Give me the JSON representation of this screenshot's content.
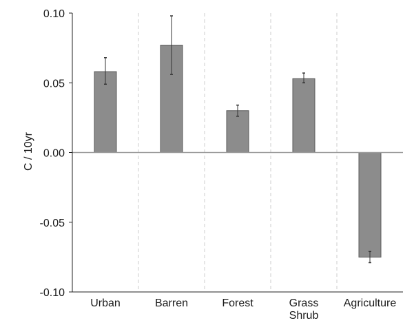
{
  "chart_data": {
    "type": "bar",
    "ylabel": "C / 10yr",
    "ylim": [
      -0.1,
      0.1
    ],
    "yticks": [
      "0.10",
      "0.05",
      "0.00",
      "-0.05",
      "-0.10"
    ],
    "ytick_values": [
      0.1,
      0.05,
      0.0,
      -0.05,
      -0.1
    ],
    "categories": [
      {
        "lines": [
          "Urban"
        ]
      },
      {
        "lines": [
          "Barren"
        ]
      },
      {
        "lines": [
          "Forest"
        ]
      },
      {
        "lines": [
          "Grass",
          "Shrub"
        ]
      },
      {
        "lines": [
          "Agriculture"
        ]
      }
    ],
    "values": [
      0.058,
      0.077,
      0.03,
      0.053,
      -0.075
    ],
    "error_low": [
      0.049,
      0.056,
      0.026,
      0.05,
      -0.079
    ],
    "error_high": [
      0.068,
      0.098,
      0.034,
      0.057,
      -0.071
    ],
    "grid": "vertical dashed separators between categories",
    "colors": {
      "bar": "#8c8c8c",
      "bar_edge": "#5a5a5a",
      "axis": "#222222",
      "grid": "#cccccc",
      "zero_line": "#9a9a9a"
    }
  }
}
